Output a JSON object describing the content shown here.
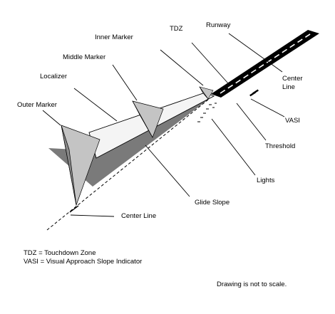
{
  "labels": {
    "tdz": "TDZ",
    "runway": "Runway",
    "inner_marker": "Inner Marker",
    "middle_marker": "Middle Marker",
    "localizer": "Localizer",
    "outer_marker": "Outer Marker",
    "center_line_runway_1": "Center",
    "center_line_runway_2": "Line",
    "vasi": "VASI",
    "threshold": "Threshold",
    "lights": "Lights",
    "glide_slope": "Glide Slope",
    "center_line_ground": "Center Line"
  },
  "legend": {
    "tdz": "TDZ = Touchdown Zone",
    "vasi": "VASI = Visual Approach Slope Indicator"
  },
  "note": "Drawing is not to scale.",
  "colors": {
    "runway": "#000000",
    "runway_centerline": "#ffffff",
    "glide_slope_plane": "#7a7a7a",
    "localizer_beam": "#f4f4f4",
    "marker_beam_light": "#c4c4c4",
    "marker_beam_dark": "#888888"
  }
}
